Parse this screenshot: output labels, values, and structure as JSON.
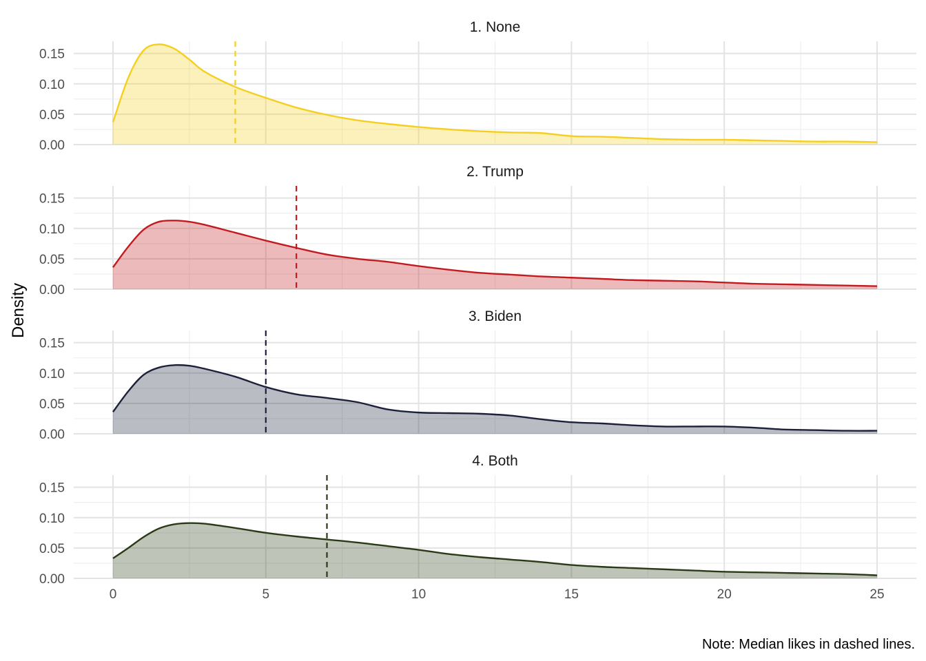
{
  "chart_data": {
    "type": "area",
    "xlabel": "",
    "ylabel": "Density",
    "caption": "Note: Median likes in dashed lines.",
    "xlim": [
      0,
      25
    ],
    "ylim": [
      0,
      0.17
    ],
    "x_ticks": [
      0,
      5,
      10,
      15,
      20,
      25
    ],
    "y_ticks": [
      0.0,
      0.05,
      0.1,
      0.15
    ],
    "y_tick_labels": [
      "0.00",
      "0.05",
      "0.10",
      "0.15"
    ],
    "grid": true,
    "legend": "none",
    "panels": [
      {
        "title": "1. None",
        "color": "#F5CF1F",
        "median": 4,
        "points": [
          [
            0,
            0.037
          ],
          [
            0.5,
            0.11
          ],
          [
            1,
            0.155
          ],
          [
            1.5,
            0.165
          ],
          [
            2,
            0.158
          ],
          [
            2.5,
            0.14
          ],
          [
            3,
            0.12
          ],
          [
            4,
            0.095
          ],
          [
            5,
            0.077
          ],
          [
            6,
            0.061
          ],
          [
            7,
            0.049
          ],
          [
            8,
            0.04
          ],
          [
            9,
            0.034
          ],
          [
            10,
            0.029
          ],
          [
            11,
            0.025
          ],
          [
            12,
            0.022
          ],
          [
            13,
            0.02
          ],
          [
            14,
            0.019
          ],
          [
            15,
            0.014
          ],
          [
            16,
            0.013
          ],
          [
            17,
            0.011
          ],
          [
            18,
            0.009
          ],
          [
            19,
            0.008
          ],
          [
            20,
            0.008
          ],
          [
            21,
            0.007
          ],
          [
            22,
            0.006
          ],
          [
            23,
            0.005
          ],
          [
            24,
            0.005
          ],
          [
            25,
            0.004
          ]
        ]
      },
      {
        "title": "2. Trump",
        "color": "#C11B1F",
        "median": 6,
        "points": [
          [
            0,
            0.036
          ],
          [
            0.5,
            0.07
          ],
          [
            1,
            0.098
          ],
          [
            1.5,
            0.111
          ],
          [
            2,
            0.113
          ],
          [
            2.5,
            0.111
          ],
          [
            3,
            0.106
          ],
          [
            4,
            0.093
          ],
          [
            5,
            0.08
          ],
          [
            6,
            0.068
          ],
          [
            7,
            0.057
          ],
          [
            8,
            0.05
          ],
          [
            9,
            0.045
          ],
          [
            10,
            0.038
          ],
          [
            11,
            0.032
          ],
          [
            12,
            0.027
          ],
          [
            13,
            0.024
          ],
          [
            14,
            0.021
          ],
          [
            15,
            0.019
          ],
          [
            16,
            0.017
          ],
          [
            17,
            0.015
          ],
          [
            18,
            0.014
          ],
          [
            19,
            0.013
          ],
          [
            20,
            0.011
          ],
          [
            21,
            0.009
          ],
          [
            22,
            0.008
          ],
          [
            23,
            0.007
          ],
          [
            24,
            0.006
          ],
          [
            25,
            0.005
          ]
        ]
      },
      {
        "title": "3. Biden",
        "color": "#1C2039",
        "median": 5,
        "points": [
          [
            0,
            0.036
          ],
          [
            0.5,
            0.07
          ],
          [
            1,
            0.097
          ],
          [
            1.5,
            0.109
          ],
          [
            2,
            0.113
          ],
          [
            2.5,
            0.112
          ],
          [
            3,
            0.107
          ],
          [
            4,
            0.094
          ],
          [
            5,
            0.077
          ],
          [
            6,
            0.065
          ],
          [
            7,
            0.059
          ],
          [
            8,
            0.052
          ],
          [
            9,
            0.04
          ],
          [
            10,
            0.035
          ],
          [
            11,
            0.034
          ],
          [
            12,
            0.033
          ],
          [
            13,
            0.03
          ],
          [
            14,
            0.024
          ],
          [
            15,
            0.019
          ],
          [
            16,
            0.017
          ],
          [
            17,
            0.014
          ],
          [
            18,
            0.012
          ],
          [
            19,
            0.012
          ],
          [
            20,
            0.012
          ],
          [
            21,
            0.01
          ],
          [
            22,
            0.007
          ],
          [
            23,
            0.006
          ],
          [
            24,
            0.005
          ],
          [
            25,
            0.005
          ]
        ]
      },
      {
        "title": "4. Both",
        "color": "#2A3A17",
        "median": 7,
        "points": [
          [
            0,
            0.033
          ],
          [
            0.5,
            0.05
          ],
          [
            1,
            0.068
          ],
          [
            1.5,
            0.082
          ],
          [
            2,
            0.089
          ],
          [
            2.5,
            0.091
          ],
          [
            3,
            0.09
          ],
          [
            4,
            0.083
          ],
          [
            5,
            0.075
          ],
          [
            6,
            0.069
          ],
          [
            7,
            0.064
          ],
          [
            8,
            0.059
          ],
          [
            9,
            0.053
          ],
          [
            10,
            0.047
          ],
          [
            11,
            0.04
          ],
          [
            12,
            0.035
          ],
          [
            13,
            0.031
          ],
          [
            14,
            0.027
          ],
          [
            15,
            0.022
          ],
          [
            16,
            0.019
          ],
          [
            17,
            0.017
          ],
          [
            18,
            0.015
          ],
          [
            19,
            0.013
          ],
          [
            20,
            0.011
          ],
          [
            21,
            0.01
          ],
          [
            22,
            0.009
          ],
          [
            23,
            0.008
          ],
          [
            24,
            0.007
          ],
          [
            25,
            0.005
          ]
        ]
      }
    ]
  }
}
